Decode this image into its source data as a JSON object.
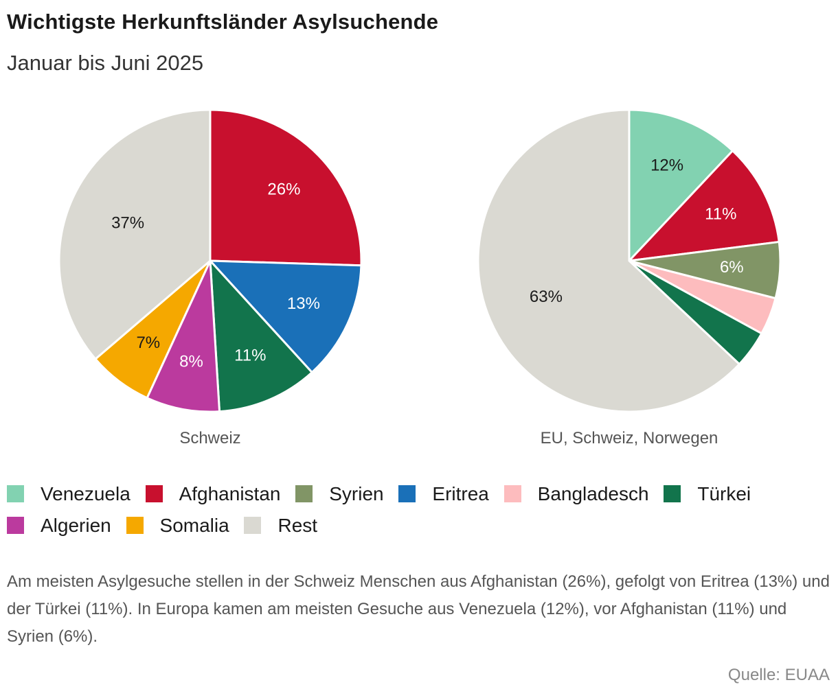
{
  "header": {
    "title": "Wichtigste Herkunftsländer Asylsuchende",
    "subtitle": "Januar bis Juni 2025"
  },
  "chart_data": [
    {
      "type": "pie",
      "caption": "Schweiz",
      "slices": [
        {
          "category": "Afghanistan",
          "value": 26,
          "label": "26%",
          "color": "#c8102e",
          "label_color": "#ffffff"
        },
        {
          "category": "Eritrea",
          "value": 13,
          "label": "13%",
          "color": "#1a70b8",
          "label_color": "#ffffff"
        },
        {
          "category": "Türkei",
          "value": 11,
          "label": "11%",
          "color": "#12744c",
          "label_color": "#ffffff"
        },
        {
          "category": "Algerien",
          "value": 8,
          "label": "8%",
          "color": "#bb3a9e",
          "label_color": "#ffffff"
        },
        {
          "category": "Somalia",
          "value": 7,
          "label": "7%",
          "color": "#f5a800",
          "label_color": "#1a1a1a"
        },
        {
          "category": "Rest",
          "value": 37,
          "label": "37%",
          "color": "#dad9d2",
          "label_color": "#1a1a1a"
        }
      ]
    },
    {
      "type": "pie",
      "caption": "EU, Schweiz, Norwegen",
      "slices": [
        {
          "category": "Venezuela",
          "value": 12,
          "label": "12%",
          "color": "#82d2b1",
          "label_color": "#1a1a1a"
        },
        {
          "category": "Afghanistan",
          "value": 11,
          "label": "11%",
          "color": "#c8102e",
          "label_color": "#ffffff"
        },
        {
          "category": "Syrien",
          "value": 6,
          "label": "6%",
          "color": "#819566",
          "label_color": "#ffffff"
        },
        {
          "category": "Bangladesch",
          "value": 4,
          "label": "",
          "color": "#fdbcbe",
          "label_color": "#1a1a1a"
        },
        {
          "category": "Türkei",
          "value": 4,
          "label": "",
          "color": "#12744c",
          "label_color": "#ffffff"
        },
        {
          "category": "Rest",
          "value": 63,
          "label": "63%",
          "color": "#dad9d2",
          "label_color": "#1a1a1a"
        }
      ]
    }
  ],
  "legend": [
    {
      "label": "Venezuela",
      "color": "#82d2b1"
    },
    {
      "label": "Afghanistan",
      "color": "#c8102e"
    },
    {
      "label": "Syrien",
      "color": "#819566"
    },
    {
      "label": "Eritrea",
      "color": "#1a70b8"
    },
    {
      "label": "Bangladesch",
      "color": "#fdbcbe"
    },
    {
      "label": "Türkei",
      "color": "#12744c"
    },
    {
      "label": "Algerien",
      "color": "#bb3a9e"
    },
    {
      "label": "Somalia",
      "color": "#f5a800"
    },
    {
      "label": "Rest",
      "color": "#dad9d2"
    }
  ],
  "note": "Am meisten Asylgesuche stellen in der Schweiz Menschen aus Afghanistan (26%), gefolgt von Eritrea (13%) und der Türkei (11%). In Europa kamen am meisten Gesuche aus Venezuela (12%), vor Afghanistan (11%) und Syrien (6%).",
  "source": "Quelle: EUAA"
}
